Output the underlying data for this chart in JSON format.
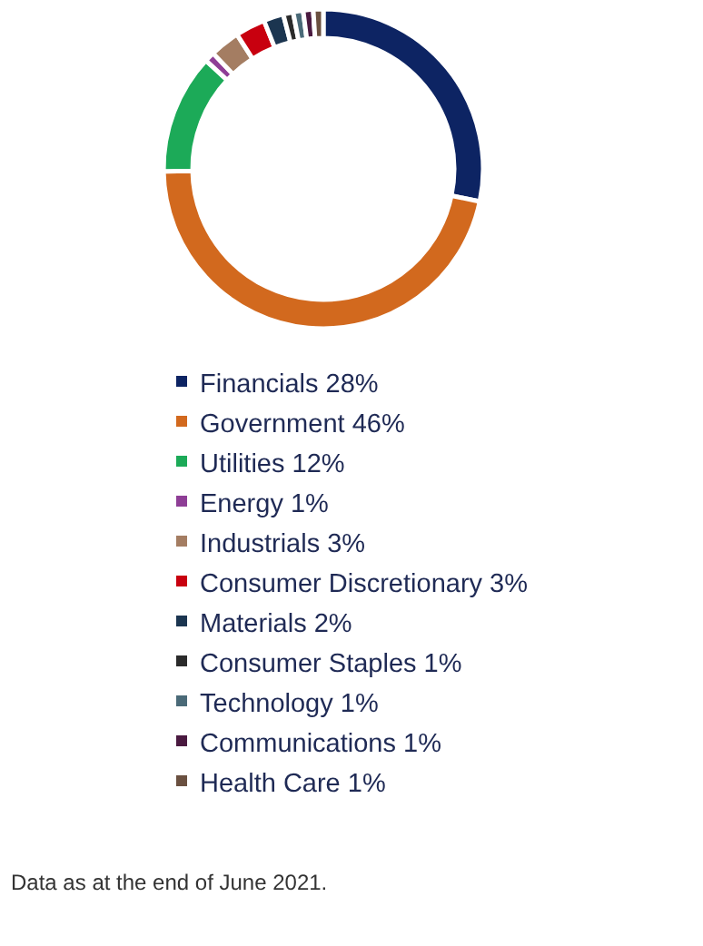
{
  "chart_data": {
    "type": "donut",
    "categories": [
      "Financials",
      "Government",
      "Utilities",
      "Energy",
      "Industrials",
      "Consumer Discretionary",
      "Materials",
      "Consumer Staples",
      "Technology",
      "Communications",
      "Health Care"
    ],
    "values": [
      28,
      46,
      12,
      1,
      3,
      3,
      2,
      1,
      1,
      1,
      1
    ],
    "value_labels": [
      "28%",
      "46%",
      "12%",
      "1%",
      "3%",
      "3%",
      "2%",
      "1%",
      "1%",
      "1%",
      "1%"
    ],
    "colors": [
      "#0d2463",
      "#d2691e",
      "#1caa58",
      "#8e3e96",
      "#a47d62",
      "#c8000f",
      "#1b3550",
      "#2b2b2b",
      "#4a6a78",
      "#4a1a40",
      "#6a5040"
    ],
    "legend": "bottom",
    "annotations": [
      "Data as at the end of June 2021."
    ]
  }
}
